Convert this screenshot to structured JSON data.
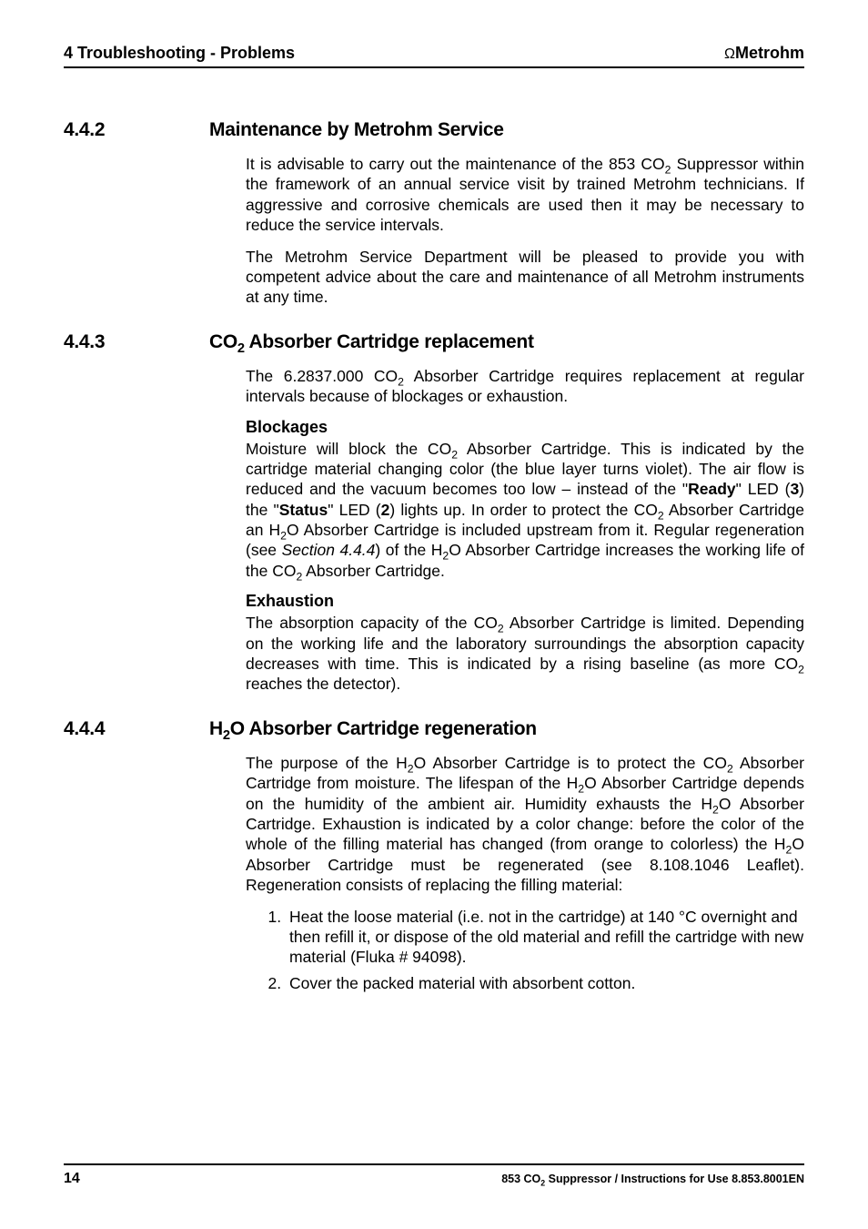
{
  "header": {
    "left": "4 Troubleshooting - Problems",
    "logo_prefix": "Ω",
    "logo_text": "Metrohm"
  },
  "sections": [
    {
      "num": "4.4.2",
      "title": "Maintenance by Metrohm Service",
      "para1_a": "It is advisable to carry out the maintenance of the 853 CO",
      "para1_b": " Suppressor within the framework of an annual service visit by trained Metrohm technicians. If aggressive and corrosive chemicals are used then it may be necessary to reduce the service intervals.",
      "para2": "The Metrohm Service Department will be pleased to provide you with competent advice about the care and maintenance of all Metrohm instruments at any time."
    },
    {
      "num": "4.4.3",
      "title_a": "CO",
      "title_b": " Absorber Cartridge replacement",
      "para1_a": "The 6.2837.000 CO",
      "para1_b": " Absorber Cartridge requires replacement at regular intervals because of blockages or exhaustion.",
      "sub1": "Blockages",
      "block_a": "Moisture will block the CO",
      "block_b": " Absorber Cartridge. This is indicated by the cartridge material changing color (the blue layer turns violet). The air flow is reduced and the vacuum becomes too low – instead of the \"",
      "block_ready": "Ready",
      "block_c": "\" LED (",
      "block_3": "3",
      "block_d": ") the \"",
      "block_status": "Status",
      "block_e": "\" LED (",
      "block_2": "2",
      "block_f": ") lights up. In order to protect the CO",
      "block_g": " Absorber Cartridge an H",
      "block_h": "O Absorber Cartridge is included upstream from it. Regular regeneration (see ",
      "block_section": "Section 4.4.4",
      "block_i": ") of the H",
      "block_j": "O Absorber Cartridge increases the working life of the CO",
      "block_k": " Absorber Cartridge.",
      "sub2": "Exhaustion",
      "exh_a": "The absorption capacity of the CO",
      "exh_b": " Absorber Cartridge is limited. Depending on the working life and the laboratory surroundings the absorption capacity decreases with time. This is indicated by a rising baseline (as more CO",
      "exh_c": " reaches the detector)."
    },
    {
      "num": "4.4.4",
      "title_a": "H",
      "title_b": "O Absorber Cartridge regeneration",
      "para_a": "The purpose of the H",
      "para_b": "O Absorber Cartridge is to protect the CO",
      "para_c": " Absorber Cartridge from moisture. The lifespan of the H",
      "para_d": "O Absorber Cartridge depends on the humidity of the ambient air. Humidity exhausts the H",
      "para_e": "O Absorber Cartridge. Exhaustion is indicated by a color change: before the color of the whole of the filling material has changed (from orange to colorless) the H",
      "para_f": "O Absorber Cartridge must be regenerated (see 8.108.1046 Leaflet). Regeneration consists of replacing the filling material:",
      "step1": "Heat the loose material (i.e. not in the cartridge) at 140 °C overnight and then refill it, or dispose of the old material and refill the cartridge with new material (Fluka # 94098).",
      "step2": "Cover the packed material with absorbent cotton."
    }
  ],
  "footer": {
    "page": "14",
    "text_a": "853 CO",
    "text_b": " Suppressor / Instructions for Use  8.853.8001EN"
  },
  "subscripts": {
    "two": "2"
  }
}
